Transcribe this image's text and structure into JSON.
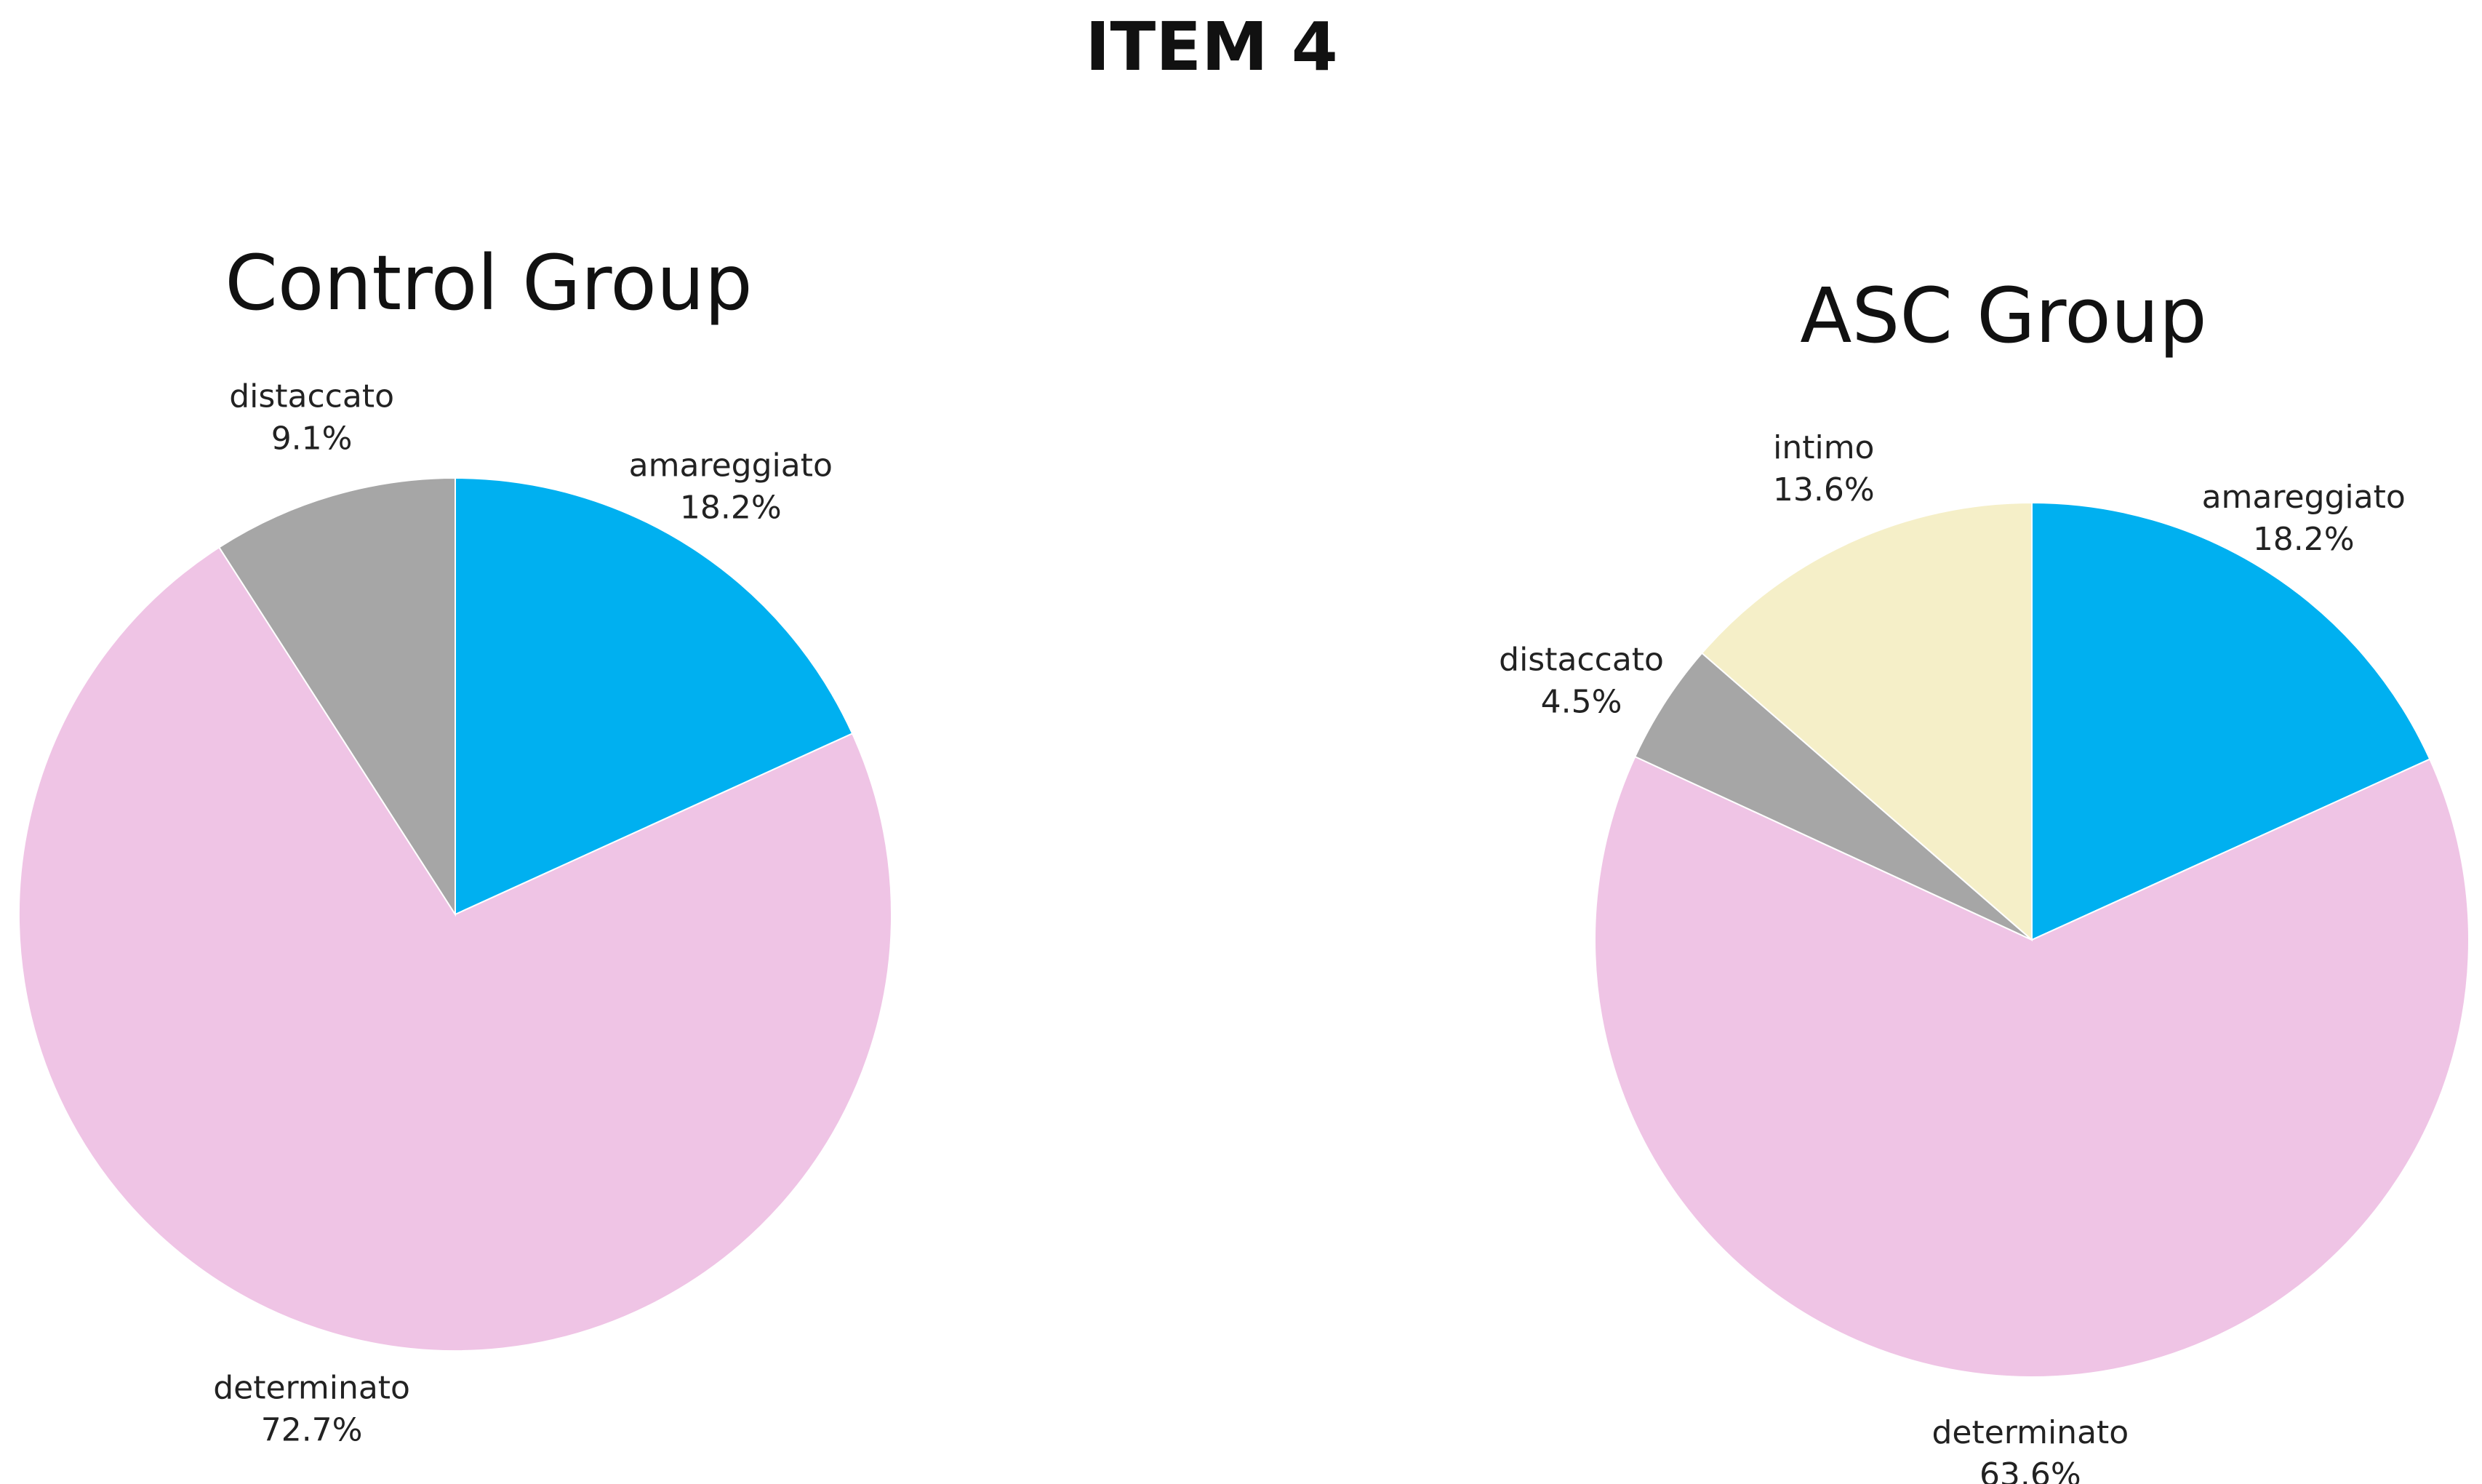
{
  "title": "ITEM 4",
  "chart_data": [
    {
      "type": "pie",
      "title": "Control Group",
      "slices": [
        {
          "label": "amareggiato",
          "value": 18.2,
          "display": "18.2%",
          "color": "#00B0F0"
        },
        {
          "label": "determinato",
          "value": 72.7,
          "display": "72.7%",
          "color": "#EFC4E5"
        },
        {
          "label": "distaccato",
          "value": 9.1,
          "display": "9.1%",
          "color": "#A6A6A6"
        }
      ],
      "start": "12 o'clock",
      "direction": "clockwise"
    },
    {
      "type": "pie",
      "title": "ASC Group",
      "slices": [
        {
          "label": "amareggiato",
          "value": 18.2,
          "display": "18.2%",
          "color": "#00B0F0"
        },
        {
          "label": "determinato",
          "value": 63.6,
          "display": "63.6%",
          "color": "#EFC4E5"
        },
        {
          "label": "distaccato",
          "value": 4.5,
          "display": "4.5%",
          "color": "#A6A6A6"
        },
        {
          "label": "intimo",
          "value": 13.6,
          "display": "13.6%",
          "color": "#F5EFC8"
        }
      ],
      "start": "12 o'clock",
      "direction": "clockwise"
    }
  ]
}
